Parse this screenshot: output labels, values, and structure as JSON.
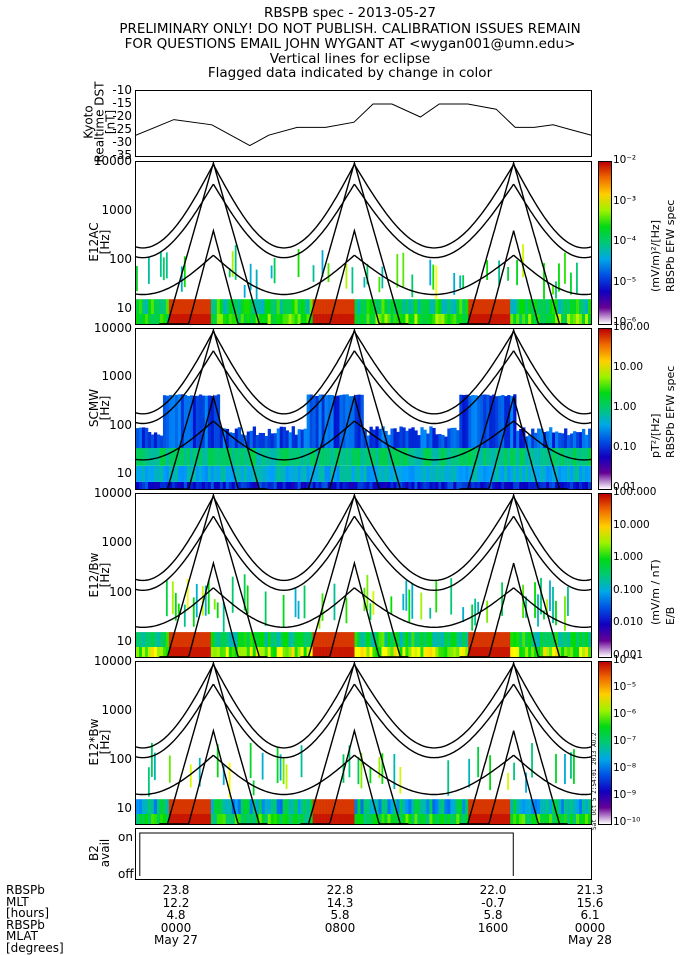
{
  "header": {
    "line1": "RBSPB spec - 2013-05-27",
    "line2": "PRELIMINARY ONLY! DO NOT PUBLISH. CALIBRATION ISSUES REMAIN",
    "line3": "FOR QUESTIONS EMAIL JOHN WYGANT AT <wygan001@umn.edu>",
    "line4": "Vertical lines for eclipse",
    "line5": "Flagged data indicated by change in color"
  },
  "dst_panel": {
    "ylabel_lines": [
      "Kyoto",
      "Realtime DST",
      "[nT]"
    ],
    "yticks": [
      "-10",
      "-15",
      "-20",
      "-25",
      "-30",
      "-35"
    ]
  },
  "spectra": [
    {
      "ylabel_lines": [
        "E12AC",
        "[Hz]"
      ],
      "cbar_ticks": [
        "10⁻²",
        "10⁻³",
        "10⁻⁴",
        "10⁻⁵",
        "10⁻⁶"
      ],
      "cbar_label": [
        "(mV/m)²/[Hz]",
        "RBSPb EFW spec"
      ]
    },
    {
      "ylabel_lines": [
        "SCMW",
        "[Hz]"
      ],
      "cbar_ticks": [
        "100.00",
        "10.00",
        "1.00",
        "0.10",
        "0.01"
      ],
      "cbar_label": [
        "pT²/[Hz]",
        "RBSPb EFW spec"
      ]
    },
    {
      "ylabel_lines": [
        "E12/Bw",
        "[Hz]"
      ],
      "cbar_ticks": [
        "100.000",
        "10.000",
        "1.000",
        "0.100",
        "0.010",
        "0.001"
      ],
      "cbar_label": [
        "(mV/m / nT)",
        "E/B"
      ]
    },
    {
      "ylabel_lines": [
        "E12*Bw",
        "[Hz]"
      ],
      "cbar_ticks": [
        "10⁻⁴",
        "10⁻⁵",
        "10⁻⁶",
        "10⁻⁷",
        "10⁻⁸",
        "10⁻⁹",
        "10⁻¹⁰"
      ],
      "cbar_label": []
    }
  ],
  "freq_ticks": [
    "10000",
    "1000",
    "100",
    "10"
  ],
  "b2_panel": {
    "ylabel_lines": [
      "B2",
      "avail"
    ],
    "yticks": [
      "on",
      "off"
    ]
  },
  "stamp": "Sat Oct  5 2:54:01 2013 AO.2",
  "footer": {
    "row_labels": [
      "RBSPb",
      "MLT",
      "[hours]",
      "RBSPb",
      "MLAT",
      "[degrees]"
    ],
    "columns": [
      [
        "23.8",
        "12.2",
        "4.8",
        "0000",
        "May 27"
      ],
      [
        "22.8",
        "14.3",
        "5.8",
        "0800",
        ""
      ],
      [
        "22.0",
        "-0.7",
        "5.8",
        "1600",
        ""
      ],
      [
        "21.3",
        "15.6",
        "6.1",
        "0000",
        "May 28"
      ]
    ]
  },
  "chart_data": [
    {
      "type": "line",
      "title": "RBSPB spec - 2013-05-27",
      "ylabel": "Kyoto Realtime DST [nT]",
      "xlabel": "",
      "ylim": [
        -35,
        -10
      ],
      "x_hours": [
        0,
        2,
        4,
        6,
        7,
        8.5,
        10,
        11.5,
        12.5,
        13.5,
        15,
        16,
        17.5,
        19,
        20,
        21,
        22,
        23,
        24
      ],
      "series": [
        {
          "values": [
            -27,
            -21,
            -23,
            -31,
            -27,
            -24,
            -24,
            -22,
            -15,
            -15,
            -20,
            -15,
            -15,
            -17,
            -24,
            -24,
            -23,
            -25,
            -27
          ]
        }
      ]
    },
    {
      "type": "heatmap",
      "ylabel": "E12AC [Hz]",
      "yscale": "log",
      "ylim": [
        5,
        10000
      ],
      "colorbar": {
        "label": "(mV/m)²/[Hz] RBSPb EFW spec",
        "range": [
          1e-06,
          0.01
        ],
        "scale": "log"
      }
    },
    {
      "type": "heatmap",
      "ylabel": "SCMW [Hz]",
      "yscale": "log",
      "ylim": [
        5,
        10000
      ],
      "colorbar": {
        "label": "pT²/[Hz] RBSPb EFW spec",
        "range": [
          0.01,
          100
        ],
        "scale": "log"
      }
    },
    {
      "type": "heatmap",
      "ylabel": "E12/Bw [Hz]",
      "yscale": "log",
      "ylim": [
        5,
        10000
      ],
      "colorbar": {
        "label": "(mV/m / nT) E/B",
        "range": [
          0.001,
          100
        ],
        "scale": "log"
      }
    },
    {
      "type": "heatmap",
      "ylabel": "E12*Bw [Hz]",
      "yscale": "log",
      "ylim": [
        5,
        10000
      ],
      "colorbar": {
        "label": "",
        "range": [
          1e-10,
          0.0001
        ],
        "scale": "log"
      }
    },
    {
      "type": "line",
      "ylabel": "B2 avail",
      "ylim": [
        "off",
        "on"
      ],
      "series": [
        {
          "segments_on_hours": [
            [
              0.2,
              19.9
            ]
          ]
        }
      ]
    }
  ],
  "colors": {
    "line": "#000000",
    "background": "#ffffff"
  }
}
